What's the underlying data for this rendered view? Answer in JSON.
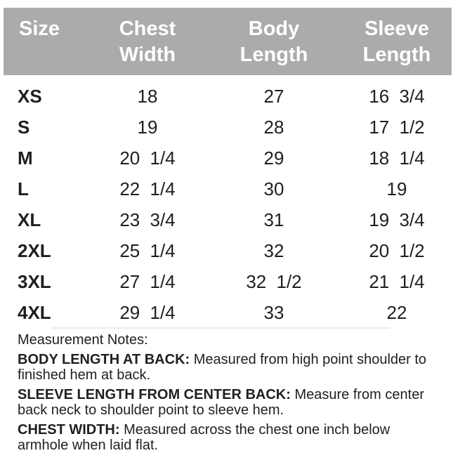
{
  "colors": {
    "header_bg": "#ababab",
    "header_text": "#ffffff",
    "body_text": "#1f1f1f",
    "divider": "#ebebeb"
  },
  "table": {
    "header": {
      "columns": [
        {
          "line1": "Size",
          "line2": ""
        },
        {
          "line1": "Chest",
          "line2": "Width"
        },
        {
          "line1": "Body",
          "line2": "Length"
        },
        {
          "line1": "Sleeve",
          "line2": "Length"
        }
      ]
    },
    "rows": [
      {
        "size": "XS",
        "chest_width": "18",
        "body_length": "27",
        "sleeve_length": "16 3/4"
      },
      {
        "size": "S",
        "chest_width": "19",
        "body_length": "28",
        "sleeve_length": "17 1/2"
      },
      {
        "size": "M",
        "chest_width": "20 1/4",
        "body_length": "29",
        "sleeve_length": "18 1/4"
      },
      {
        "size": "L",
        "chest_width": "22 1/4",
        "body_length": "30",
        "sleeve_length": "19"
      },
      {
        "size": "XL",
        "chest_width": "23 3/4",
        "body_length": "31",
        "sleeve_length": "19 3/4"
      },
      {
        "size": "2XL",
        "chest_width": "25 1/4",
        "body_length": "32",
        "sleeve_length": "20 1/2"
      },
      {
        "size": "3XL",
        "chest_width": "27 1/4",
        "body_length": "32 1/2",
        "sleeve_length": "21 1/4"
      },
      {
        "size": "4XL",
        "chest_width": "29 1/4",
        "body_length": "33",
        "sleeve_length": "22"
      }
    ]
  },
  "notes": {
    "title": "Measurement Notes:",
    "items": [
      {
        "label": "BODY LENGTH AT BACK:",
        "text": "Measured from high point shoulder to finished hem at back."
      },
      {
        "label": "SLEEVE LENGTH FROM CENTER BACK:",
        "text": "Measure from center back neck to shoulder point to sleeve hem."
      },
      {
        "label": "CHEST WIDTH:",
        "text": "Measured across the chest one inch below armhole when laid flat."
      }
    ]
  },
  "chart_data": {
    "type": "table",
    "columns": [
      "Size",
      "Chest Width",
      "Body Length",
      "Sleeve Length"
    ],
    "rows": [
      [
        "XS",
        "18",
        "27",
        "16 3/4"
      ],
      [
        "S",
        "19",
        "28",
        "17 1/2"
      ],
      [
        "M",
        "20 1/4",
        "29",
        "18 1/4"
      ],
      [
        "L",
        "22 1/4",
        "30",
        "19"
      ],
      [
        "XL",
        "23 3/4",
        "31",
        "19 3/4"
      ],
      [
        "2XL",
        "25 1/4",
        "32",
        "20 1/2"
      ],
      [
        "3XL",
        "27 1/4",
        "32 1/2",
        "21 1/4"
      ],
      [
        "4XL",
        "29 1/4",
        "33",
        "22"
      ]
    ],
    "units": "inches",
    "footnotes": [
      "BODY LENGTH AT BACK: Measured from high point shoulder to finished hem at back.",
      "SLEEVE LENGTH FROM CENTER BACK: Measure from center back neck to shoulder point to sleeve hem.",
      "CHEST WIDTH: Measured across the chest one inch below armhole when laid flat."
    ]
  }
}
